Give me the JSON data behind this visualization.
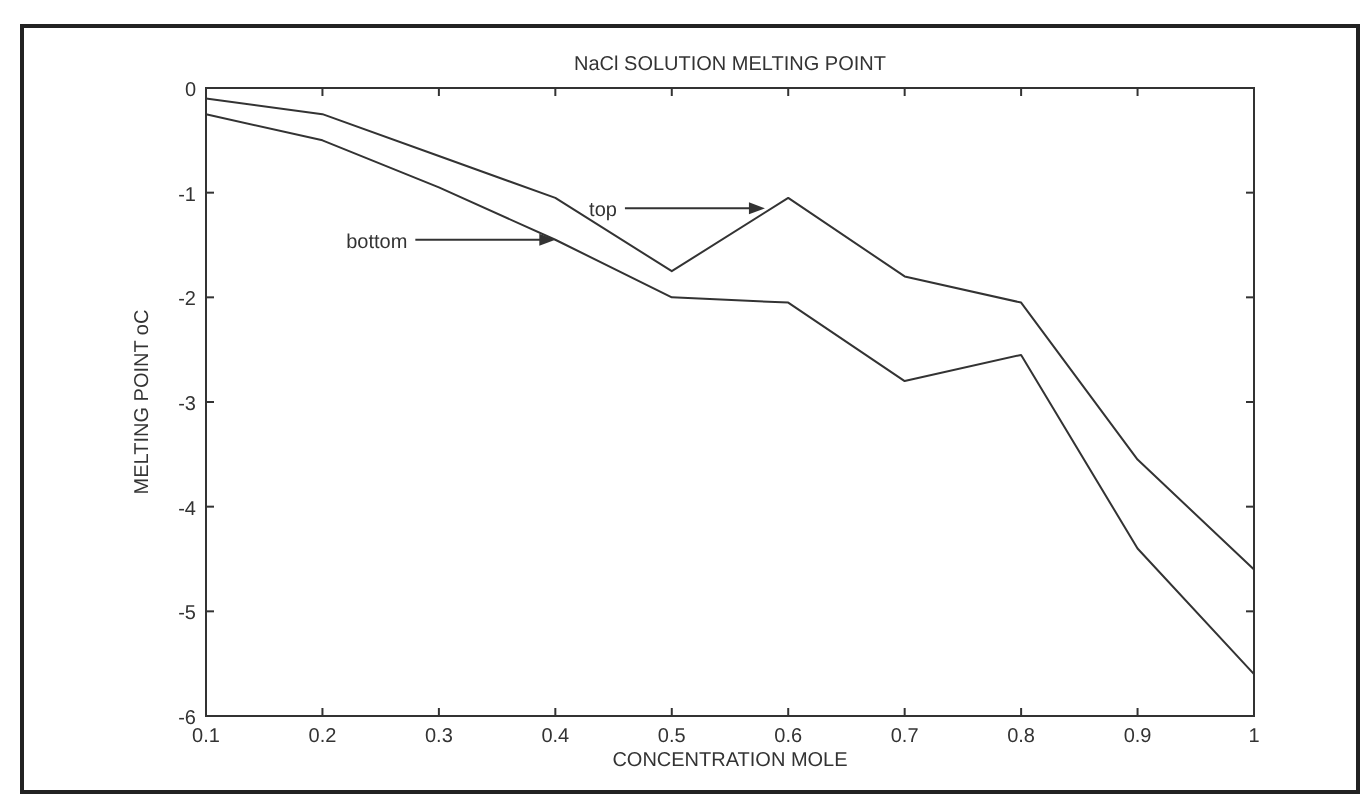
{
  "chart_data": {
    "type": "line",
    "title": "NaCl SOLUTION MELTING POINT",
    "xlabel": "CONCENTRATION MOLE",
    "ylabel": "MELTING POINT oC",
    "x": [
      0.1,
      0.2,
      0.3,
      0.4,
      0.5,
      0.6,
      0.7,
      0.8,
      0.9,
      1
    ],
    "series": [
      {
        "color": "#333333",
        "values": [
          -0.1,
          -0.25,
          -0.65,
          -1.05,
          -1.75,
          -1.05,
          -1.8,
          -2.05,
          -3.55,
          -4.6
        ]
      },
      {
        "color": "#333333",
        "values": [
          -0.25,
          -0.5,
          -0.95,
          -1.45,
          -2.0,
          -2.05,
          -2.8,
          -2.55,
          -4.4,
          -5.6
        ]
      }
    ],
    "annotations": [
      {
        "text": "top",
        "x": 0.58,
        "y": -1.15
      },
      {
        "text": "bottom",
        "x": 0.4,
        "y": -1.45
      }
    ],
    "xlim": [
      0.1,
      1
    ],
    "xticks": [
      0.1,
      0.2,
      0.3,
      0.4,
      0.5,
      0.6,
      0.7,
      0.8,
      0.9,
      1
    ],
    "ylim": [
      -6,
      0
    ],
    "yticks": [
      -6,
      -5,
      -4,
      -3,
      -2,
      -1,
      0
    ],
    "grid": false,
    "marker": "none",
    "line_style": "solid"
  }
}
